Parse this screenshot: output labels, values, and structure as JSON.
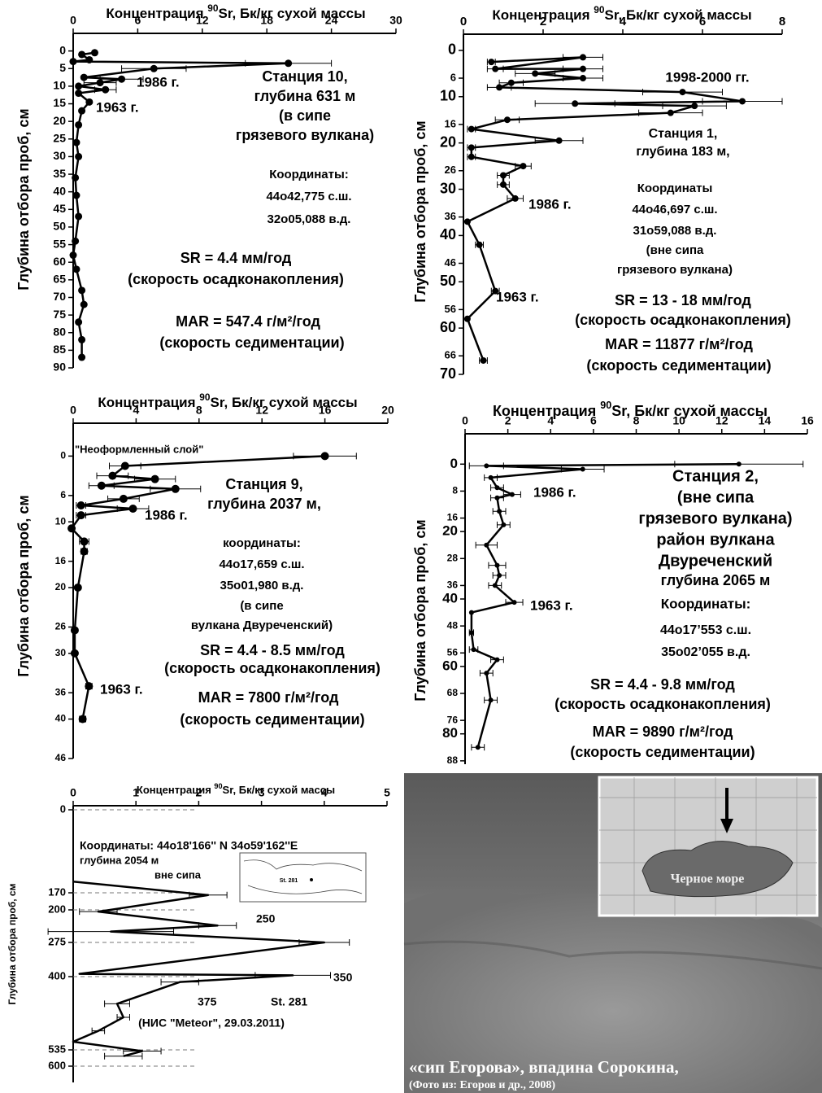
{
  "chart_data": [
    {
      "type": "line",
      "x_label": [
        "Концентрация ",
        "90",
        "Sr, Бк/кг сухой массы"
      ],
      "y_label": "Глубина отбора проб, см",
      "xlim": [
        0,
        30
      ],
      "xticks": [
        0,
        6,
        12,
        18,
        24,
        30
      ],
      "ylim": [
        -5,
        90
      ],
      "yticks": [
        0,
        5,
        10,
        15,
        20,
        25,
        30,
        35,
        40,
        45,
        50,
        55,
        60,
        65,
        70,
        75,
        80,
        85,
        90
      ],
      "series": [
        {
          "color": "#000000",
          "values": [
            2,
            0.8,
            1.5,
            0,
            20,
            7.5,
            1,
            4.5,
            2.5,
            0.5,
            3,
            0.5,
            1.5,
            0.8,
            0.5,
            0.3,
            0.5,
            0.2,
            0.3,
            0.5,
            0.2,
            0,
            0.3,
            0.8,
            1,
            0.5,
            0.8,
            0.8
          ],
          "depth": [
            0.5,
            1,
            2.5,
            3,
            3.5,
            5,
            7.5,
            8,
            9,
            10,
            11,
            12,
            14.5,
            17,
            21,
            26,
            30,
            36,
            41,
            47,
            54,
            58,
            62,
            68,
            72,
            77,
            82,
            87
          ],
          "errors": [
            null,
            null,
            null,
            null,
            4,
            3,
            null,
            2,
            1.5,
            null,
            1,
            null,
            null,
            null,
            null,
            null,
            null,
            null,
            null,
            null,
            null,
            null,
            null,
            null,
            null,
            null,
            null,
            null
          ]
        }
      ],
      "annotations": [
        "1986 г.",
        "Станция 10,",
        "глубина 631 м",
        "(в сипе",
        "грязевого вулкана)",
        "1963 г.",
        "Координаты:",
        "44о42,775 с.ш.",
        "32о05,088 в.д.",
        "SR = 4.4 мм/год",
        "(скорость осадконакопления)",
        "MAR = 547.4  г/м²/год",
        "(скорость седиментации)"
      ]
    },
    {
      "type": "line",
      "x_label": [
        "Концентрация ",
        "90",
        "Sr, Бк/кг сухой массы"
      ],
      "y_label": "Глубина отбора проб, см",
      "xlim": [
        0,
        8
      ],
      "xticks": [
        0,
        2,
        4,
        6,
        8
      ],
      "ylim": [
        -3.5,
        70
      ],
      "yticks": [
        0,
        6,
        10,
        16,
        20,
        26,
        30,
        36,
        40,
        46,
        50,
        56,
        60,
        66,
        70
      ],
      "series": [
        {
          "color": "#000000",
          "values": [
            0.7,
            3,
            0.8,
            3,
            1.8,
            3,
            1.2,
            0.9,
            5.5,
            7,
            2.8,
            5.8,
            5.2,
            1.1,
            0.2,
            2.4,
            0.2,
            0.2,
            1.5,
            1,
            1,
            1.3,
            0.1,
            0.4,
            0.8,
            0.1,
            0.5
          ],
          "depth": [
            2.5,
            1.5,
            4,
            4,
            5,
            6,
            7,
            8,
            9,
            11,
            11.5,
            12,
            13.5,
            15,
            17,
            19.5,
            21,
            23,
            25,
            27,
            29,
            32,
            37,
            42,
            52,
            58,
            67
          ],
          "errors": [
            0.1,
            0.5,
            0.2,
            0.5,
            0.5,
            0.5,
            0.3,
            0.3,
            1,
            1,
            1,
            0.8,
            0.8,
            0.3,
            0.1,
            0.6,
            0.1,
            0.1,
            0.2,
            0.15,
            0.15,
            0.2,
            null,
            0.1,
            0.1,
            null,
            0.1
          ]
        }
      ],
      "annotations": [
        "1998-2000 гг.",
        "Станция 1,",
        "глубина 183 м,",
        "Координаты",
        "44о46,697 с.ш.",
        "31о59,088 в.д.",
        "(вне сипа",
        "грязевого вулкана)",
        "1986 г.",
        "1963 г.",
        "SR = 13 - 18 мм/год",
        "(скорость осадконакопления)",
        "MAR = 11877 г/м²/год",
        "(скорость седиментации)"
      ]
    },
    {
      "type": "line",
      "x_label": [
        "Концентрация ",
        "90",
        "Sr, Бк/кг сухой массы"
      ],
      "y_label": "Глубина отбора проб, см",
      "xlim": [
        0,
        20
      ],
      "xticks": [
        0,
        4,
        8,
        12,
        16,
        20
      ],
      "ylim": [
        -5,
        46
      ],
      "yticks": [
        0,
        6,
        10,
        16,
        20,
        26,
        30,
        36,
        40,
        46
      ],
      "series": [
        {
          "color": "#000000",
          "values": [
            16,
            3.3,
            2.5,
            5.2,
            1.8,
            6.5,
            3.2,
            0.5,
            3.8,
            0.5,
            -0.1,
            0.7,
            0.7,
            0.3,
            0.1,
            0.1,
            1,
            0.6
          ],
          "depth": [
            0,
            1.5,
            3,
            3.5,
            4.5,
            5,
            6.5,
            7.5,
            8,
            9,
            11,
            13,
            14.5,
            20,
            26.5,
            30,
            35,
            40
          ],
          "errors": [
            2,
            1,
            1,
            1.3,
            0.8,
            1.6,
            1,
            0.3,
            1,
            0.3,
            null,
            0.3,
            0.2,
            null,
            null,
            null,
            0.2,
            0.2
          ]
        }
      ],
      "annotations": [
        "\"Неоформленный слой\"",
        "Станция 9,",
        "глубина 2037 м,",
        "1986 г.",
        "координаты:",
        "44о17,659 с.ш.",
        "35о01,980 в.д.",
        "(в сипе",
        "вулкана Двуреченский)",
        "SR = 4.4 - 8.5 мм/год",
        "(скорость осадконакопления)",
        "1963 г.",
        "MAR = 7800 г/м²/год",
        "(скорость седиментации)"
      ]
    },
    {
      "type": "line",
      "x_label": [
        "Концентрация ",
        "90",
        "Sr, Бк/кг сухой массы"
      ],
      "y_label": "Глубина отбора проб, см",
      "xlim": [
        0,
        16
      ],
      "xticks": [
        0,
        2,
        4,
        6,
        8,
        10,
        12,
        14,
        16
      ],
      "ylim": [
        -9,
        89
      ],
      "yticks": [
        0,
        8,
        16,
        20,
        28,
        36,
        40,
        48,
        56,
        60,
        68,
        76,
        80,
        88
      ],
      "series": [
        {
          "color": "#000000",
          "values": [
            12.8,
            1,
            5.5,
            1.2,
            1.5,
            2.2,
            1.5,
            1.6,
            1.8,
            1,
            1.5,
            1.6,
            1.4,
            2.3,
            0.3,
            0.3,
            0.4,
            1.5,
            1,
            1.2,
            0.6
          ],
          "depth": [
            0,
            0.5,
            1.5,
            4,
            7,
            9,
            10,
            14,
            18,
            24,
            30,
            33,
            36,
            41,
            44,
            50,
            55,
            58,
            62,
            70,
            84
          ],
          "errors": [
            3,
            0.8,
            1,
            0.3,
            0.3,
            0.4,
            0.3,
            0.3,
            0.3,
            0.5,
            0.4,
            0.3,
            0.3,
            0.4,
            null,
            0.1,
            0.2,
            0.3,
            0.3,
            0.3,
            0.3
          ]
        }
      ],
      "annotations": [
        "Станция 2,",
        "(вне сипа",
        "грязевого вулкана)",
        "район вулкана",
        "Двуреченский",
        "глубина 2065 м",
        "1986 г.",
        "1963 г.",
        "Координаты:",
        "44о17’553 с.ш.",
        "35о02’055 в.д.",
        "SR = 4.4 - 9.8 мм/год",
        "(скорость осадконакопления)",
        "MAR = 9890 г/м²/год",
        "(скорость седиментации)"
      ]
    },
    {
      "type": "line",
      "x_label": [
        "Концентрация ",
        "90",
        "Sr, Бк/кг сухой массы"
      ],
      "y_label": "Глубина отбора проб, см",
      "xlim": [
        0,
        5
      ],
      "xticks": [
        0,
        1,
        2,
        3,
        4,
        5
      ],
      "ylim": [
        0,
        660
      ],
      "yticks": [
        0,
        170,
        200,
        275,
        400,
        535,
        600
      ],
      "grid": true,
      "series": [
        {
          "color": "#000000",
          "values": [
            0,
            2.15,
            0.4,
            2.3,
            0.6,
            4.0,
            0.1,
            3.5,
            1.7,
            0.7,
            0.8,
            0.4,
            0,
            1.1,
            0.8
          ],
          "depth": [
            147,
            174,
            204,
            236,
            250,
            275,
            390,
            395,
            410,
            450,
            475,
            500,
            520,
            540,
            560
          ],
          "errors": [
            null,
            0.3,
            0.3,
            0.3,
            1,
            0.4,
            null,
            0.6,
            0.3,
            0.2,
            0.1,
            0.1,
            null,
            0.3,
            0.3
          ]
        }
      ],
      "annotations": [
        "Координаты:  44о18'166'' N   34о59'162''E",
        "глубина 2054 м",
        "вне сипа",
        "250",
        "350",
        "375",
        "St. 281",
        "(НИС \"Meteor\", 29.03.2011)"
      ],
      "inset_label": "St. 281"
    }
  ],
  "photo": {
    "caption": [
      "«сип Егорова», впадина Сорокина,",
      "(Фото из: Егоров и др., 2008)"
    ],
    "inset_label": "Черное море"
  }
}
